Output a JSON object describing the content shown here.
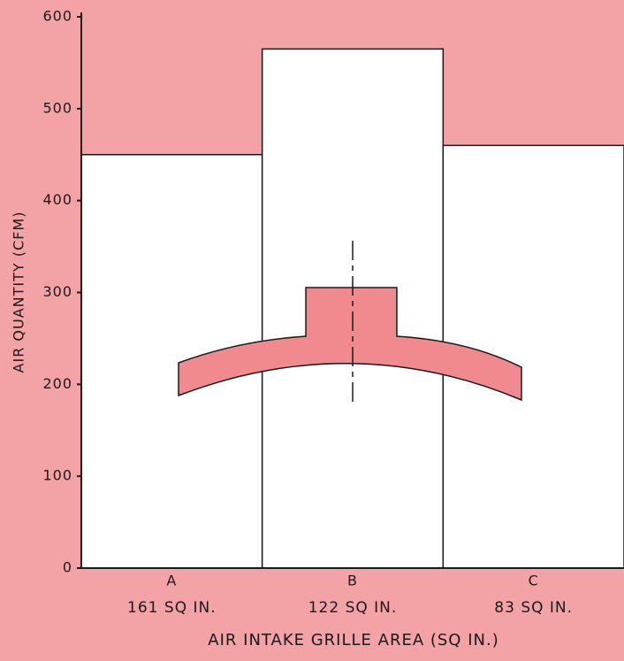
{
  "chart_data": {
    "type": "bar",
    "categories": [
      "A",
      "B",
      "C"
    ],
    "category_areas": [
      "161 SQ IN.",
      "122 SQ IN.",
      "83 SQ IN."
    ],
    "values": [
      450,
      565,
      460
    ],
    "color": "#ffffff",
    "background": "#f3a3a6",
    "x_label": "AIR INTAKE GRILLE AREA (SQ IN.)",
    "y_label": "AIR QUANTITY (CFM)",
    "ylim": [
      0,
      600
    ],
    "yticks": [
      0,
      100,
      200,
      300,
      400,
      500,
      600
    ],
    "grid": false
  }
}
